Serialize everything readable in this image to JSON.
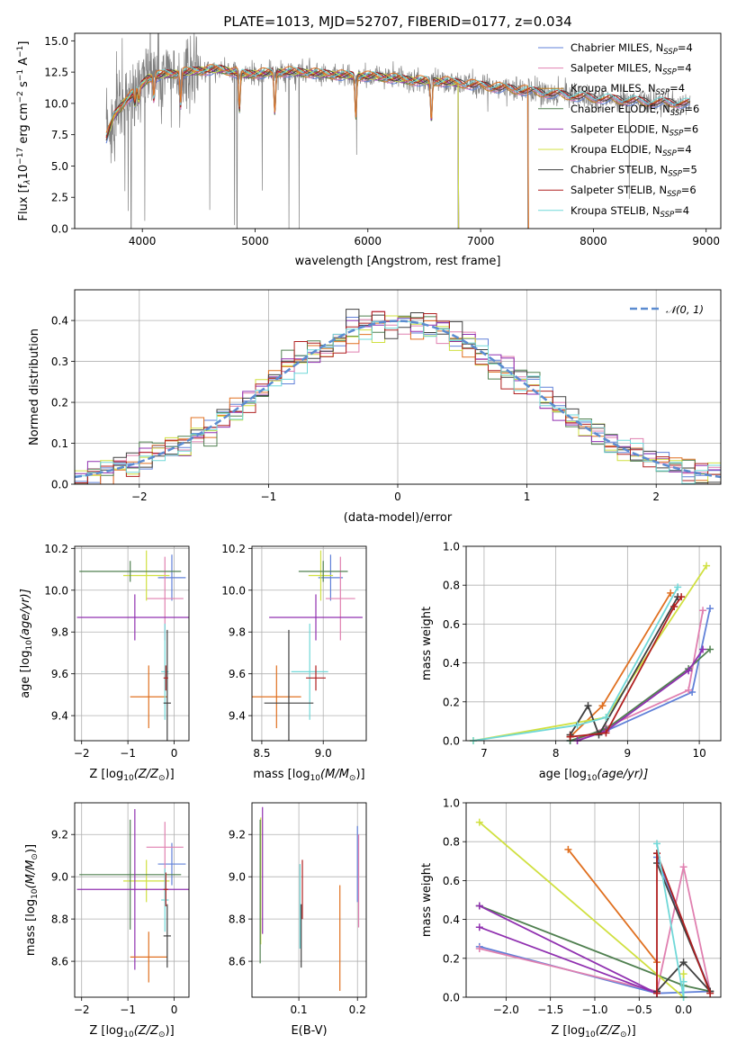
{
  "chart_data": [
    {
      "id": "spectrum",
      "type": "line",
      "title": "PLATE=1013, MJD=52707, FIBERID=0177, z=0.034",
      "xlabel": "wavelength [Angstrom, rest frame]",
      "ylabel": "Flux [f",
      "ylabel_sub": "λ",
      "ylabel_rest": "10",
      "ylabel_sup": "−17",
      "ylabel_tail": " erg cm",
      "ylabel_sup2": "−2",
      "ylabel_tail2": " s",
      "ylabel_sup3": "−1",
      "ylabel_tail3": " A",
      "ylabel_sup4": "−1",
      "ylabel_end": "]",
      "xlim": [
        3400,
        9130
      ],
      "ylim": [
        0,
        15.6
      ],
      "xticks": [
        4000,
        5000,
        6000,
        7000,
        8000,
        9000
      ],
      "yticks": [
        0.0,
        2.5,
        5.0,
        7.5,
        10.0,
        12.5,
        15.0
      ],
      "grid": false,
      "legend_position": "top-right",
      "data_range": [
        3680,
        8860
      ],
      "series": [
        {
          "name": "Chabrier MILES, N",
          "sub": "SSP",
          "suffix": "=4",
          "color": "#6080d8",
          "end": 8860
        },
        {
          "name": "Salpeter MILES, N",
          "sub": "SSP",
          "suffix": "=4",
          "color": "#e080b0",
          "end": 8860
        },
        {
          "name": "Kroupa MILES, N",
          "sub": "SSP",
          "suffix": "=4",
          "color": "#c08020",
          "end": 8860
        },
        {
          "name": "Chabrier ELODIE, N",
          "sub": "SSP",
          "suffix": "=6",
          "color": "#508050",
          "end": 6800
        },
        {
          "name": "Salpeter ELODIE, N",
          "sub": "SSP",
          "suffix": "=6",
          "color": "#9030b0",
          "end": 6800
        },
        {
          "name": "Kroupa ELODIE, N",
          "sub": "SSP",
          "suffix": "=4",
          "color": "#d0e040",
          "end": 6800
        },
        {
          "name": "Chabrier STELIB, N",
          "sub": "SSP",
          "suffix": "=5",
          "color": "#404040",
          "end": 8860
        },
        {
          "name": "Salpeter STELIB, N",
          "sub": "SSP",
          "suffix": "=6",
          "color": "#b02020",
          "end": 8860
        },
        {
          "name": "Kroupa STELIB, N",
          "sub": "SSP",
          "suffix": "=4",
          "color": "#70d8d8",
          "end": 8860
        },
        {
          "name": "",
          "color": "#e07020",
          "end": 7420
        }
      ],
      "model_points": [
        [
          3680,
          7.2
        ],
        [
          3750,
          9.0
        ],
        [
          3850,
          10.2
        ],
        [
          3950,
          11.0
        ],
        [
          4050,
          12.0
        ],
        [
          4200,
          12.3
        ],
        [
          4350,
          12.4
        ],
        [
          4500,
          12.6
        ],
        [
          4700,
          12.7
        ],
        [
          4900,
          12.3
        ],
        [
          5100,
          12.4
        ],
        [
          5300,
          12.5
        ],
        [
          5500,
          12.4
        ],
        [
          5800,
          12.2
        ],
        [
          6100,
          12.1
        ],
        [
          6400,
          11.8
        ],
        [
          6700,
          11.7
        ],
        [
          7000,
          11.4
        ],
        [
          7300,
          11.1
        ],
        [
          7600,
          10.8
        ],
        [
          7900,
          10.5
        ],
        [
          8200,
          10.3
        ],
        [
          8500,
          10.1
        ],
        [
          8860,
          10.0
        ]
      ]
    },
    {
      "id": "residuals",
      "type": "histogram",
      "xlabel": "(data-model)/error",
      "ylabel": "Normed distribution",
      "xlim": [
        -2.5,
        2.5
      ],
      "ylim": [
        0,
        0.475
      ],
      "xticks": [
        -2,
        -1,
        0,
        1,
        2
      ],
      "xtick_labels": [
        "−2",
        "−1",
        "0",
        "1",
        "2"
      ],
      "yticks": [
        0.0,
        0.1,
        0.2,
        0.3,
        0.4
      ],
      "grid": true,
      "legend_position": "top-right",
      "legend_label": "𝒩(0, 1)",
      "gauss_color": "#5b8bd0",
      "bin_width": 0.1,
      "colors": [
        "#6080d8",
        "#e080b0",
        "#e07020",
        "#508050",
        "#9030b0",
        "#d0e040",
        "#404040",
        "#b02020",
        "#70d8d8"
      ]
    },
    {
      "id": "age-vs-Z",
      "type": "errorbar",
      "xlabel": "Z [log",
      "xlabel_sub": "10",
      "xlabel_rest": "(Z/Z",
      "xlabel_sub2": "⊙",
      "xlabel_end": ")]",
      "ylabel": "age  [log",
      "ylabel_sub": "10",
      "ylabel_rest": "(age/yr)]",
      "xlim": [
        -2.15,
        0.32
      ],
      "ylim": [
        9.28,
        10.21
      ],
      "xticks": [
        -2,
        -1,
        0
      ],
      "xtick_labels": [
        "−2",
        "−1",
        "0"
      ],
      "yticks": [
        9.4,
        9.6,
        9.8,
        10.0,
        10.2
      ],
      "ytick_labels": [
        "9.4",
        "9.6",
        "9.8",
        "10.0",
        "10.2"
      ],
      "grid": true,
      "points": [
        {
          "x": -0.05,
          "xerr": 0.3,
          "y": 10.06,
          "yerr": 0.11,
          "color": "#6080d8"
        },
        {
          "x": -0.2,
          "xerr": 0.4,
          "y": 9.96,
          "yerr": 0.2,
          "color": "#e080b0"
        },
        {
          "x": -0.6,
          "xerr": 0.5,
          "y": 10.07,
          "yerr": 0.12,
          "color": "#d0e040"
        },
        {
          "x": -0.95,
          "xerr": 1.1,
          "y": 10.09,
          "yerr": 0.05,
          "color": "#508050"
        },
        {
          "x": -0.85,
          "xerr": 1.25,
          "y": 9.87,
          "yerr": 0.11,
          "color": "#9030b0"
        },
        {
          "x": -0.55,
          "xerr": 0.4,
          "y": 9.49,
          "yerr": 0.15,
          "color": "#e07020"
        },
        {
          "x": -0.2,
          "xerr": 0.08,
          "y": 9.61,
          "yerr": 0.23,
          "color": "#70d8d8"
        },
        {
          "x": -0.15,
          "xerr": 0.08,
          "y": 9.46,
          "yerr": 0.35,
          "color": "#404040"
        },
        {
          "x": -0.18,
          "xerr": 0.05,
          "y": 9.58,
          "yerr": 0.06,
          "color": "#b02020"
        }
      ]
    },
    {
      "id": "age-vs-mass",
      "type": "errorbar",
      "xlabel": "mass [log",
      "xlabel_sub": "10",
      "xlabel_rest": "(M/M",
      "xlabel_sub2": "⊙",
      "xlabel_end": ")]",
      "xlim": [
        8.42,
        9.35
      ],
      "ylim": [
        9.28,
        10.21
      ],
      "xticks": [
        8.5,
        9.0
      ],
      "xtick_labels": [
        "8.5",
        "9.0"
      ],
      "yticks": [
        9.4,
        9.6,
        9.8,
        10.0,
        10.2
      ],
      "ytick_labels": [
        "9.4",
        "9.6",
        "9.8",
        "10.0",
        "10.2"
      ],
      "grid": true,
      "points": [
        {
          "x": 9.06,
          "xerr": 0.1,
          "y": 10.06,
          "yerr": 0.11,
          "color": "#6080d8"
        },
        {
          "x": 9.14,
          "xerr": 0.12,
          "y": 9.96,
          "yerr": 0.2,
          "color": "#e080b0"
        },
        {
          "x": 8.98,
          "xerr": 0.1,
          "y": 10.07,
          "yerr": 0.12,
          "color": "#d0e040"
        },
        {
          "x": 9.0,
          "xerr": 0.2,
          "y": 10.09,
          "yerr": 0.05,
          "color": "#508050"
        },
        {
          "x": 8.94,
          "xerr": 0.38,
          "y": 9.87,
          "yerr": 0.11,
          "color": "#9030b0"
        },
        {
          "x": 8.62,
          "xerr": 0.2,
          "y": 9.49,
          "yerr": 0.15,
          "color": "#e07020"
        },
        {
          "x": 8.89,
          "xerr": 0.15,
          "y": 9.61,
          "yerr": 0.23,
          "color": "#70d8d8"
        },
        {
          "x": 8.72,
          "xerr": 0.2,
          "y": 9.46,
          "yerr": 0.35,
          "color": "#404040"
        },
        {
          "x": 8.94,
          "xerr": 0.08,
          "y": 9.58,
          "yerr": 0.06,
          "color": "#b02020"
        }
      ]
    },
    {
      "id": "weight-vs-age",
      "type": "line",
      "xlabel": "age  [log",
      "xlabel_sub": "10",
      "xlabel_rest": "(age/yr)]",
      "ylabel": "mass weight",
      "xlim": [
        6.75,
        10.3
      ],
      "ylim": [
        0,
        1.0
      ],
      "xticks": [
        7,
        8,
        9,
        10
      ],
      "xtick_labels": [
        "7",
        "8",
        "9",
        "10"
      ],
      "yticks": [
        0.0,
        0.2,
        0.4,
        0.6,
        0.8,
        1.0
      ],
      "ytick_labels": [
        "0.0",
        "0.2",
        "0.4",
        "0.6",
        "0.8",
        "1.0"
      ],
      "grid": true,
      "series": [
        {
          "color": "#6080d8",
          "x": [
            8.2,
            8.7,
            9.9,
            10.15
          ],
          "y": [
            0.0,
            0.05,
            0.25,
            0.68
          ]
        },
        {
          "color": "#e080b0",
          "x": [
            8.3,
            8.7,
            9.85,
            10.05
          ],
          "y": [
            0.0,
            0.07,
            0.26,
            0.67
          ]
        },
        {
          "color": "#e07020",
          "x": [
            8.2,
            8.65,
            9.6
          ],
          "y": [
            0.02,
            0.18,
            0.76
          ]
        },
        {
          "color": "#508050",
          "x": [
            8.2,
            8.7,
            9.85,
            10.15
          ],
          "y": [
            0.0,
            0.06,
            0.37,
            0.47
          ]
        },
        {
          "color": "#9030b0",
          "x": [
            8.3,
            8.7,
            9.85,
            10.05
          ],
          "y": [
            0.0,
            0.05,
            0.36,
            0.47
          ]
        },
        {
          "color": "#d0e040",
          "x": [
            6.85,
            8.7,
            10.1
          ],
          "y": [
            0.0,
            0.12,
            0.9
          ]
        },
        {
          "color": "#404040",
          "x": [
            8.2,
            8.45,
            8.6,
            9.7
          ],
          "y": [
            0.03,
            0.18,
            0.03,
            0.74
          ]
        },
        {
          "color": "#b02020",
          "x": [
            8.2,
            8.7,
            9.65,
            9.75
          ],
          "y": [
            0.02,
            0.04,
            0.69,
            0.74
          ]
        },
        {
          "color": "#70d8d8",
          "x": [
            6.85,
            8.3,
            8.7,
            9.7
          ],
          "y": [
            0.0,
            0.08,
            0.12,
            0.79
          ]
        }
      ]
    },
    {
      "id": "mass-vs-Z",
      "type": "errorbar",
      "xlabel": "Z [log",
      "xlabel_sub": "10",
      "xlabel_rest": "(Z/Z",
      "xlabel_sub2": "⊙",
      "xlabel_end": ")]",
      "ylabel": "mass [log",
      "ylabel_sub": "10",
      "ylabel_rest": "(M/M",
      "ylabel_sub2": "⊙",
      "ylabel_end": ")]",
      "xlim": [
        -2.15,
        0.32
      ],
      "ylim": [
        8.43,
        9.35
      ],
      "xticks": [
        -2,
        -1,
        0
      ],
      "xtick_labels": [
        "−2",
        "−1",
        "0"
      ],
      "yticks": [
        8.6,
        8.8,
        9.0,
        9.2
      ],
      "ytick_labels": [
        "8.6",
        "8.8",
        "9.0",
        "9.2"
      ],
      "grid": true,
      "points": [
        {
          "x": -0.05,
          "xerr": 0.3,
          "y": 9.06,
          "yerr": 0.1,
          "color": "#6080d8"
        },
        {
          "x": -0.2,
          "xerr": 0.4,
          "y": 9.14,
          "yerr": 0.12,
          "color": "#e080b0"
        },
        {
          "x": -0.6,
          "xerr": 0.5,
          "y": 8.98,
          "yerr": 0.1,
          "color": "#d0e040"
        },
        {
          "x": -0.95,
          "xerr": 1.1,
          "y": 9.01,
          "yerr": 0.26,
          "color": "#508050"
        },
        {
          "x": -0.85,
          "xerr": 1.25,
          "y": 8.94,
          "yerr": 0.38,
          "color": "#9030b0"
        },
        {
          "x": -0.55,
          "xerr": 0.4,
          "y": 8.62,
          "yerr": 0.12,
          "color": "#e07020"
        },
        {
          "x": -0.2,
          "xerr": 0.08,
          "y": 8.89,
          "yerr": 0.15,
          "color": "#70d8d8"
        },
        {
          "x": -0.15,
          "xerr": 0.08,
          "y": 8.72,
          "yerr": 0.15,
          "color": "#404040"
        },
        {
          "x": -0.18,
          "xerr": 0.05,
          "y": 8.94,
          "yerr": 0.08,
          "color": "#b02020"
        }
      ]
    },
    {
      "id": "mass-vs-ebv",
      "type": "errorbar",
      "xlabel": "E(B-V)",
      "xlim": [
        0.02,
        0.215
      ],
      "ylim": [
        8.43,
        9.35
      ],
      "xticks": [
        0.1,
        0.2
      ],
      "xtick_labels": [
        "0.1",
        "0.2"
      ],
      "yticks": [
        8.6,
        8.8,
        9.0,
        9.2
      ],
      "ytick_labels": [
        "8.6",
        "8.8",
        "9.0",
        "9.2"
      ],
      "grid": true,
      "points": [
        {
          "x": 0.2,
          "xerr": 0,
          "y": 9.06,
          "yerr": 0.18,
          "color": "#6080d8"
        },
        {
          "x": 0.202,
          "xerr": 0,
          "y": 8.98,
          "yerr": 0.22,
          "color": "#e080b0"
        },
        {
          "x": 0.035,
          "xerr": 0,
          "y": 8.98,
          "yerr": 0.3,
          "color": "#d0e040"
        },
        {
          "x": 0.034,
          "xerr": 0,
          "y": 8.93,
          "yerr": 0.34,
          "color": "#508050"
        },
        {
          "x": 0.038,
          "xerr": 0,
          "y": 9.03,
          "yerr": 0.3,
          "color": "#9030b0"
        },
        {
          "x": 0.17,
          "xerr": 0,
          "y": 8.71,
          "yerr": 0.25,
          "color": "#e07020"
        },
        {
          "x": 0.102,
          "xerr": 0,
          "y": 8.86,
          "yerr": 0.2,
          "color": "#70d8d8"
        },
        {
          "x": 0.104,
          "xerr": 0,
          "y": 8.72,
          "yerr": 0.15,
          "color": "#404040"
        },
        {
          "x": 0.106,
          "xerr": 0,
          "y": 8.94,
          "yerr": 0.14,
          "color": "#b02020"
        }
      ]
    },
    {
      "id": "weight-vs-Z",
      "type": "line",
      "xlabel": "Z [log",
      "xlabel_sub": "10",
      "xlabel_rest": "(Z/Z",
      "xlabel_sub2": "⊙",
      "xlabel_end": ")]",
      "ylabel": "mass weight",
      "xlim": [
        -2.45,
        0.42
      ],
      "ylim": [
        0,
        1.0
      ],
      "xticks": [
        -2.0,
        -1.5,
        -1.0,
        -0.5,
        0.0
      ],
      "xtick_labels": [
        "−2.0",
        "−1.5",
        "−1.0",
        "−0.5",
        "0.0"
      ],
      "yticks": [
        0.0,
        0.2,
        0.4,
        0.6,
        0.8,
        1.0
      ],
      "ytick_labels": [
        "0.0",
        "0.2",
        "0.4",
        "0.6",
        "0.8",
        "1.0"
      ],
      "grid": true,
      "series": [
        {
          "color": "#6080d8",
          "x": [
            -2.3,
            -0.3,
            0.3,
            -0.3
          ],
          "y": [
            0.26,
            0.02,
            0.03,
            0.72
          ]
        },
        {
          "color": "#e080b0",
          "x": [
            -2.3,
            -0.3,
            0.0,
            0.3
          ],
          "y": [
            0.25,
            0.03,
            0.67,
            0.03
          ]
        },
        {
          "color": "#e07020",
          "x": [
            -1.3,
            -0.3,
            -0.3
          ],
          "y": [
            0.76,
            0.18,
            0.02
          ]
        },
        {
          "color": "#508050",
          "x": [
            -2.3,
            0.0,
            0.3
          ],
          "y": [
            0.47,
            0.06,
            0.03
          ]
        },
        {
          "color": "#9030b0",
          "x": [
            -2.3,
            -0.3,
            -2.3
          ],
          "y": [
            0.36,
            0.02,
            0.47
          ]
        },
        {
          "color": "#d0e040",
          "x": [
            -2.3,
            0.0,
            0.0
          ],
          "y": [
            0.9,
            0.0,
            0.12
          ]
        },
        {
          "color": "#404040",
          "x": [
            -0.3,
            0.0,
            0.3,
            -0.3,
            -0.3
          ],
          "y": [
            0.03,
            0.18,
            0.03,
            0.69,
            0.74
          ]
        },
        {
          "color": "#b02020",
          "x": [
            -0.3,
            -0.3,
            0.3
          ],
          "y": [
            0.02,
            0.74,
            0.02
          ]
        },
        {
          "color": "#70d8d8",
          "x": [
            -0.3,
            0.0,
            0.0
          ],
          "y": [
            0.79,
            0.0,
            0.08
          ]
        }
      ]
    }
  ]
}
